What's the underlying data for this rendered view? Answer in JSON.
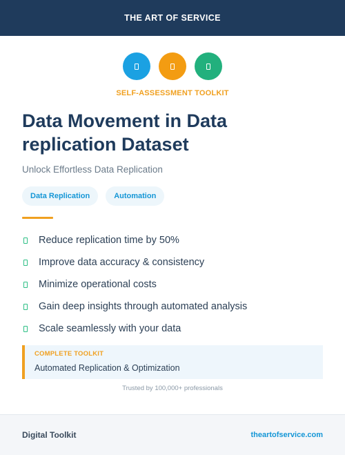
{
  "header": {
    "brand": "THE ART OF SERVICE",
    "background": "#1f3b5c"
  },
  "icons": [
    {
      "name": "document-icon",
      "color": "#1ba1e2"
    },
    {
      "name": "document-icon",
      "color": "#f39c12"
    },
    {
      "name": "document-icon",
      "color": "#22b07d"
    }
  ],
  "kicker": "SELF-ASSESSMENT TOOLKIT",
  "title": "Data Movement in Data replication Dataset",
  "subtitle": "Unlock Effortless Data Replication",
  "tags": [
    "Data Replication",
    "Automation"
  ],
  "features": [
    "Reduce replication time by 50%",
    "Improve data accuracy & consistency",
    "Minimize operational costs",
    "Gain deep insights through automated analysis",
    "Scale seamlessly with your data"
  ],
  "toolkit": {
    "label": "COMPLETE TOOLKIT",
    "value": "Automated Replication & Optimization"
  },
  "trust": "Trusted by 100,000+ professionals",
  "footer": {
    "left": "Digital Toolkit",
    "right": "theartofservice.com"
  },
  "colors": {
    "accent": "#f0a020",
    "link": "#1496d6",
    "check": "#2dbf85"
  }
}
